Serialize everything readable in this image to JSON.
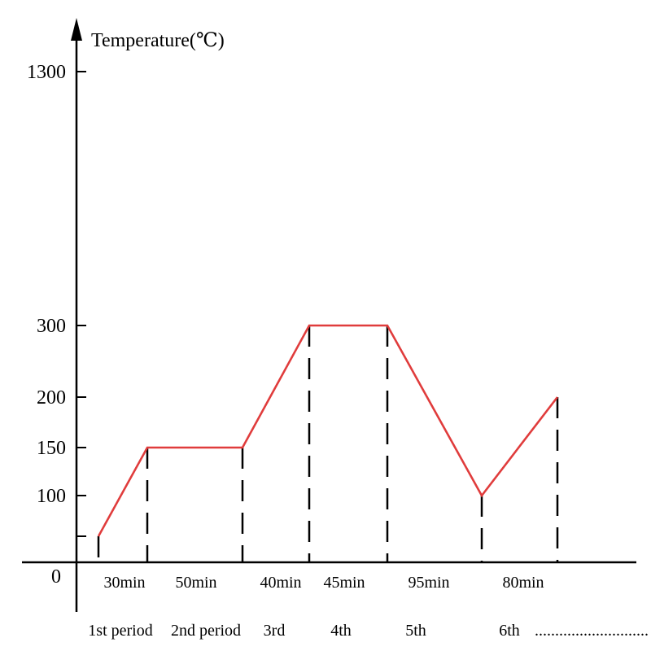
{
  "chart_data": {
    "type": "line",
    "ylabel": "Temperature(℃)",
    "zero_label": "0",
    "y_ticks": [
      "100",
      "150",
      "200",
      "300",
      "1300"
    ],
    "y_ticks_numeric": [
      100,
      150,
      200,
      300,
      1300
    ],
    "points": [
      {
        "t": 0,
        "temp": 40
      },
      {
        "t": 30,
        "temp": 150
      },
      {
        "t": 80,
        "temp": 150
      },
      {
        "t": 120,
        "temp": 300
      },
      {
        "t": 165,
        "temp": 300
      },
      {
        "t": 260,
        "temp": 100
      },
      {
        "t": 340,
        "temp": 200
      }
    ],
    "durations": [
      "30min",
      "50min",
      "40min",
      "45min",
      "95min",
      "80min"
    ],
    "periods": [
      "1st period",
      "2nd period",
      "3rd",
      "4th",
      "5th",
      "6th"
    ],
    "continuation": "............................",
    "line_color": "#e03c3c",
    "axis_color": "#000000",
    "grid": false,
    "legend": "none"
  }
}
